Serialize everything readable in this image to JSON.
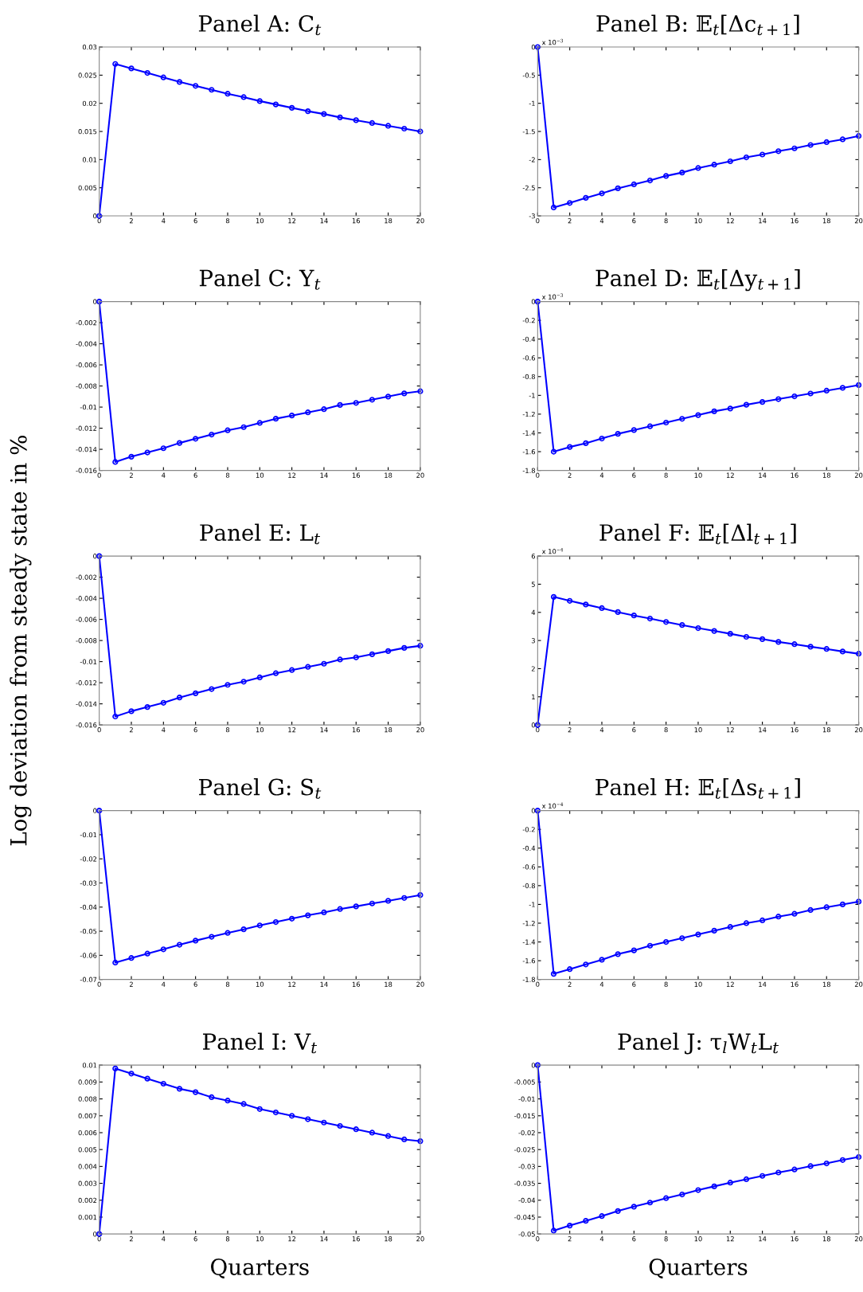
{
  "chart_data": [
    {
      "type": "line",
      "title": "Panel A: C$_{t}$",
      "x": [
        0,
        1,
        2,
        3,
        4,
        5,
        6,
        7,
        8,
        9,
        10,
        11,
        12,
        13,
        14,
        15,
        16,
        17,
        18,
        19,
        20
      ],
      "series": [
        {
          "color": "#0000ff",
          "values": [
            0,
            0.027,
            0.0262,
            0.0254,
            0.0246,
            0.0238,
            0.0231,
            0.0224,
            0.0217,
            0.0211,
            0.0204,
            0.0198,
            0.0192,
            0.0186,
            0.0181,
            0.0175,
            0.017,
            0.0165,
            0.016,
            0.0155,
            0.015
          ]
        }
      ],
      "xlim": [
        0,
        20
      ],
      "xticks": [
        0,
        2,
        4,
        6,
        8,
        10,
        12,
        14,
        16,
        18,
        20
      ],
      "ylim": [
        0,
        0.03
      ],
      "yticks": [
        0,
        0.005,
        0.01,
        0.015,
        0.02,
        0.025,
        0.03
      ],
      "marker": "circle",
      "line_style": "solid",
      "grid": false,
      "legend": false
    },
    {
      "type": "line",
      "title": "Panel B: 𝔼$_{t}$[Δc$_{t+1}$]",
      "annotations": [
        "x 10$^{−3}$"
      ],
      "x": [
        0,
        1,
        2,
        3,
        4,
        5,
        6,
        7,
        8,
        9,
        10,
        11,
        12,
        13,
        14,
        15,
        16,
        17,
        18,
        19,
        20
      ],
      "series": [
        {
          "color": "#0000ff",
          "values": [
            0,
            -2.85,
            -2.77,
            -2.68,
            -2.6,
            -2.51,
            -2.44,
            -2.37,
            -2.29,
            -2.23,
            -2.15,
            -2.09,
            -2.03,
            -1.96,
            -1.91,
            -1.85,
            -1.8,
            -1.74,
            -1.69,
            -1.64,
            -1.58
          ]
        }
      ],
      "xlim": [
        0,
        20
      ],
      "xticks": [
        0,
        2,
        4,
        6,
        8,
        10,
        12,
        14,
        16,
        18,
        20
      ],
      "ylim": [
        -3,
        0
      ],
      "yticks": [
        -3,
        -2.5,
        -2,
        -1.5,
        -1,
        -0.5,
        0
      ],
      "marker": "circle",
      "line_style": "solid",
      "grid": false,
      "legend": false
    },
    {
      "type": "line",
      "title": "Panel C: Y$_{t}$",
      "x": [
        0,
        1,
        2,
        3,
        4,
        5,
        6,
        7,
        8,
        9,
        10,
        11,
        12,
        13,
        14,
        15,
        16,
        17,
        18,
        19,
        20
      ],
      "series": [
        {
          "color": "#0000ff",
          "values": [
            0,
            -0.0152,
            -0.0147,
            -0.0143,
            -0.0139,
            -0.0134,
            -0.013,
            -0.0126,
            -0.0122,
            -0.0119,
            -0.0115,
            -0.0111,
            -0.0108,
            -0.0105,
            -0.0102,
            -0.0098,
            -0.0096,
            -0.0093,
            -0.009,
            -0.0087,
            -0.0085
          ]
        }
      ],
      "xlim": [
        0,
        20
      ],
      "xticks": [
        0,
        2,
        4,
        6,
        8,
        10,
        12,
        14,
        16,
        18,
        20
      ],
      "ylim": [
        -0.016,
        0
      ],
      "yticks": [
        -0.016,
        -0.014,
        -0.012,
        -0.01,
        -0.008,
        -0.006,
        -0.004,
        -0.002,
        0
      ],
      "marker": "circle",
      "line_style": "solid",
      "grid": false,
      "legend": false
    },
    {
      "type": "line",
      "title": "Panel D: 𝔼$_{t}$[Δy$_{t+1}$]",
      "annotations": [
        "x 10$^{−3}$"
      ],
      "x": [
        0,
        1,
        2,
        3,
        4,
        5,
        6,
        7,
        8,
        9,
        10,
        11,
        12,
        13,
        14,
        15,
        16,
        17,
        18,
        19,
        20
      ],
      "series": [
        {
          "color": "#0000ff",
          "values": [
            0,
            -1.6,
            -1.55,
            -1.51,
            -1.46,
            -1.41,
            -1.37,
            -1.33,
            -1.29,
            -1.25,
            -1.21,
            -1.17,
            -1.14,
            -1.1,
            -1.07,
            -1.04,
            -1.01,
            -0.98,
            -0.95,
            -0.92,
            -0.89
          ]
        }
      ],
      "xlim": [
        0,
        20
      ],
      "xticks": [
        0,
        2,
        4,
        6,
        8,
        10,
        12,
        14,
        16,
        18,
        20
      ],
      "ylim": [
        -1.8,
        0
      ],
      "yticks": [
        -1.8,
        -1.6,
        -1.4,
        -1.2,
        -1,
        -0.8,
        -0.6,
        -0.4,
        -0.2,
        0
      ],
      "marker": "circle",
      "line_style": "solid",
      "grid": false,
      "legend": false
    },
    {
      "type": "line",
      "title": "Panel E: L$_{t}$",
      "ylabel": "Log deviation from steady state in %",
      "x": [
        0,
        1,
        2,
        3,
        4,
        5,
        6,
        7,
        8,
        9,
        10,
        11,
        12,
        13,
        14,
        15,
        16,
        17,
        18,
        19,
        20
      ],
      "series": [
        {
          "color": "#0000ff",
          "values": [
            0,
            -0.0152,
            -0.0147,
            -0.0143,
            -0.0139,
            -0.0134,
            -0.013,
            -0.0126,
            -0.0122,
            -0.0119,
            -0.0115,
            -0.0111,
            -0.0108,
            -0.0105,
            -0.0102,
            -0.0098,
            -0.0096,
            -0.0093,
            -0.009,
            -0.0087,
            -0.0085
          ]
        }
      ],
      "xlim": [
        0,
        20
      ],
      "xticks": [
        0,
        2,
        4,
        6,
        8,
        10,
        12,
        14,
        16,
        18,
        20
      ],
      "ylim": [
        -0.016,
        0
      ],
      "yticks": [
        -0.016,
        -0.014,
        -0.012,
        -0.01,
        -0.008,
        -0.006,
        -0.004,
        -0.002,
        0
      ],
      "marker": "circle",
      "line_style": "solid",
      "grid": false,
      "legend": false
    },
    {
      "type": "line",
      "title": "Panel F: 𝔼$_{t}$[Δl$_{t+1}$]",
      "annotations": [
        "x 10$^{−4}$"
      ],
      "x": [
        0,
        1,
        2,
        3,
        4,
        5,
        6,
        7,
        8,
        9,
        10,
        11,
        12,
        13,
        14,
        15,
        16,
        17,
        18,
        19,
        20
      ],
      "series": [
        {
          "color": "#0000ff",
          "values": [
            0,
            4.55,
            4.41,
            4.28,
            4.15,
            4.01,
            3.89,
            3.78,
            3.66,
            3.55,
            3.44,
            3.34,
            3.24,
            3.13,
            3.05,
            2.95,
            2.87,
            2.78,
            2.7,
            2.61,
            2.53
          ]
        }
      ],
      "xlim": [
        0,
        20
      ],
      "xticks": [
        0,
        2,
        4,
        6,
        8,
        10,
        12,
        14,
        16,
        18,
        20
      ],
      "ylim": [
        0,
        6
      ],
      "yticks": [
        0,
        1,
        2,
        3,
        4,
        5,
        6
      ],
      "marker": "circle",
      "line_style": "solid",
      "grid": false,
      "legend": false
    },
    {
      "type": "line",
      "title": "Panel G: S$_{t}$",
      "x": [
        0,
        1,
        2,
        3,
        4,
        5,
        6,
        7,
        8,
        9,
        10,
        11,
        12,
        13,
        14,
        15,
        16,
        17,
        18,
        19,
        20
      ],
      "series": [
        {
          "color": "#0000ff",
          "values": [
            0,
            -0.063,
            -0.0611,
            -0.0593,
            -0.0575,
            -0.0556,
            -0.0539,
            -0.0523,
            -0.0507,
            -0.0492,
            -0.0476,
            -0.0462,
            -0.0448,
            -0.0434,
            -0.0422,
            -0.0408,
            -0.0397,
            -0.0385,
            -0.0374,
            -0.0362,
            -0.035
          ]
        }
      ],
      "xlim": [
        0,
        20
      ],
      "xticks": [
        0,
        2,
        4,
        6,
        8,
        10,
        12,
        14,
        16,
        18,
        20
      ],
      "ylim": [
        -0.07,
        0
      ],
      "yticks": [
        -0.07,
        -0.06,
        -0.05,
        -0.04,
        -0.03,
        -0.02,
        -0.01,
        0
      ],
      "marker": "circle",
      "line_style": "solid",
      "grid": false,
      "legend": false
    },
    {
      "type": "line",
      "title": "Panel H: 𝔼$_{t}$[Δs$_{t+1}$]",
      "annotations": [
        "x 10$^{−4}$"
      ],
      "x": [
        0,
        1,
        2,
        3,
        4,
        5,
        6,
        7,
        8,
        9,
        10,
        11,
        12,
        13,
        14,
        15,
        16,
        17,
        18,
        19,
        20
      ],
      "series": [
        {
          "color": "#0000ff",
          "values": [
            0,
            -1.74,
            -1.69,
            -1.64,
            -1.59,
            -1.53,
            -1.49,
            -1.44,
            -1.4,
            -1.36,
            -1.32,
            -1.28,
            -1.24,
            -1.2,
            -1.17,
            -1.13,
            -1.1,
            -1.06,
            -1.03,
            -1.0,
            -0.97
          ]
        }
      ],
      "xlim": [
        0,
        20
      ],
      "xticks": [
        0,
        2,
        4,
        6,
        8,
        10,
        12,
        14,
        16,
        18,
        20
      ],
      "ylim": [
        -1.8,
        0
      ],
      "yticks": [
        -1.8,
        -1.6,
        -1.4,
        -1.2,
        -1,
        -0.8,
        -0.6,
        -0.4,
        -0.2,
        0
      ],
      "marker": "circle",
      "line_style": "solid",
      "grid": false,
      "legend": false
    },
    {
      "type": "line",
      "title": "Panel I: V$_{t}$",
      "xlabel": "Quarters",
      "x": [
        0,
        1,
        2,
        3,
        4,
        5,
        6,
        7,
        8,
        9,
        10,
        11,
        12,
        13,
        14,
        15,
        16,
        17,
        18,
        19,
        20
      ],
      "series": [
        {
          "color": "#0000ff",
          "values": [
            0,
            0.0098,
            0.0095,
            0.0092,
            0.0089,
            0.0086,
            0.0084,
            0.0081,
            0.0079,
            0.0077,
            0.0074,
            0.0072,
            0.007,
            0.0068,
            0.0066,
            0.0064,
            0.0062,
            0.006,
            0.0058,
            0.0056,
            0.0055
          ]
        }
      ],
      "xlim": [
        0,
        20
      ],
      "xticks": [
        0,
        2,
        4,
        6,
        8,
        10,
        12,
        14,
        16,
        18,
        20
      ],
      "ylim": [
        0,
        0.01
      ],
      "yticks": [
        0,
        0.001,
        0.002,
        0.003,
        0.004,
        0.005,
        0.006,
        0.007,
        0.008,
        0.009,
        0.01
      ],
      "marker": "circle",
      "line_style": "solid",
      "grid": false,
      "legend": false
    },
    {
      "type": "line",
      "title": "Panel J: τ$_{l}$W$_{t}$L$_{t}$",
      "xlabel": "Quarters",
      "x": [
        0,
        1,
        2,
        3,
        4,
        5,
        6,
        7,
        8,
        9,
        10,
        11,
        12,
        13,
        14,
        15,
        16,
        17,
        18,
        19,
        20
      ],
      "series": [
        {
          "color": "#0000ff",
          "values": [
            0,
            -0.049,
            -0.0475,
            -0.0461,
            -0.0447,
            -0.0432,
            -0.0419,
            -0.0407,
            -0.0394,
            -0.0383,
            -0.037,
            -0.0359,
            -0.0348,
            -0.0338,
            -0.0328,
            -0.0318,
            -0.0309,
            -0.0299,
            -0.0291,
            -0.0281,
            -0.0272
          ]
        }
      ],
      "xlim": [
        0,
        20
      ],
      "xticks": [
        0,
        2,
        4,
        6,
        8,
        10,
        12,
        14,
        16,
        18,
        20
      ],
      "ylim": [
        -0.05,
        0
      ],
      "yticks": [
        -0.05,
        -0.045,
        -0.04,
        -0.035,
        -0.03,
        -0.025,
        -0.02,
        -0.015,
        -0.01,
        -0.005,
        0
      ],
      "marker": "circle",
      "line_style": "solid",
      "grid": false,
      "legend": false
    }
  ]
}
